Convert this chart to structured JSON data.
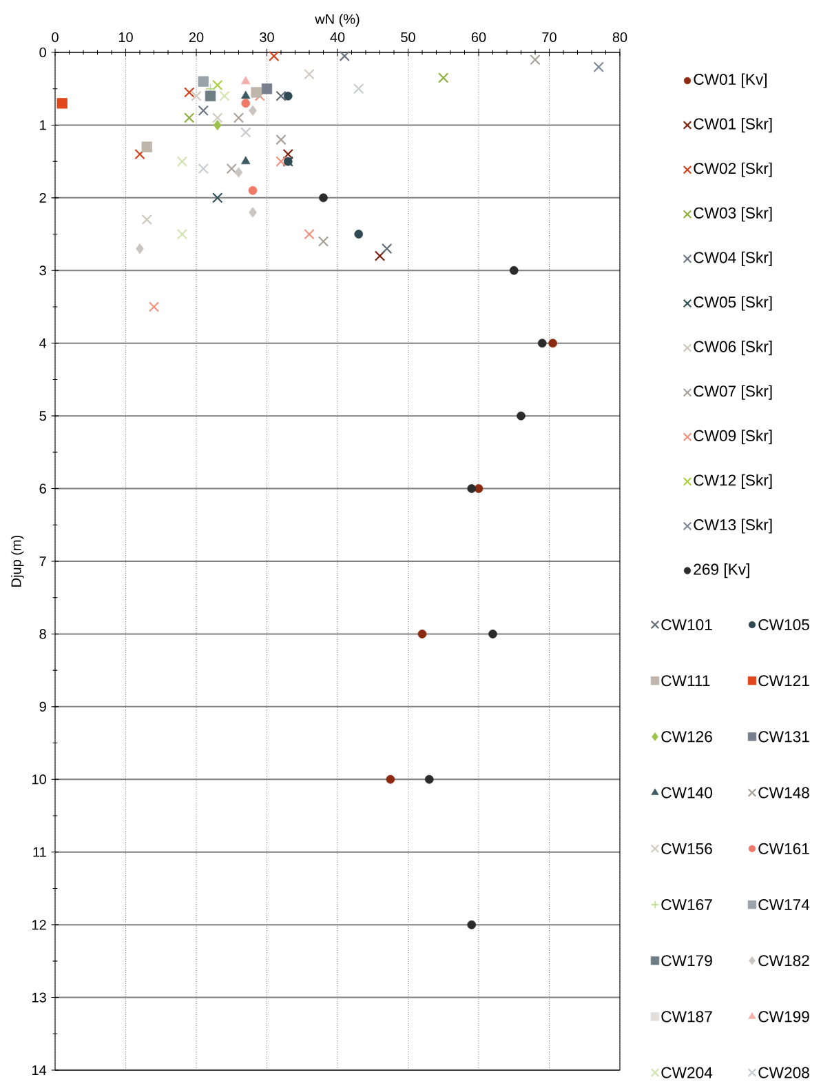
{
  "chart_data": {
    "type": "scatter",
    "xlabel": "wN (%)",
    "ylabel": "Djup (m)",
    "xlim": [
      0,
      80
    ],
    "xticks": [
      0,
      10,
      20,
      30,
      40,
      50,
      60,
      70,
      80
    ],
    "ylim": [
      14,
      0
    ],
    "yticks": [
      0,
      1,
      2,
      3,
      4,
      5,
      6,
      7,
      8,
      9,
      10,
      11,
      12,
      13,
      14
    ],
    "grid": true,
    "legend": "right",
    "series": [
      {
        "name": "CW01 [Kv]",
        "color": "#8b2a10",
        "marker": "circle",
        "x": [
          70.5,
          60,
          52,
          47.5
        ],
        "values": [
          4.0,
          6.0,
          8.0,
          10.0
        ]
      },
      {
        "name": "CW01 [Skr]",
        "color": "#7a1e0a",
        "marker": "cross",
        "x": [
          33,
          46
        ],
        "values": [
          1.4,
          2.8
        ]
      },
      {
        "name": "CW02 [Skr]",
        "color": "#d2401a",
        "marker": "cross",
        "x": [
          31,
          19,
          12
        ],
        "values": [
          0.05,
          0.55,
          1.4
        ]
      },
      {
        "name": "CW03 [Skr]",
        "color": "#8db03a",
        "marker": "cross",
        "x": [
          55,
          19
        ],
        "values": [
          0.35,
          0.9
        ]
      },
      {
        "name": "CW04 [Skr]",
        "color": "#6a7380",
        "marker": "cross",
        "x": [
          41,
          21
        ],
        "values": [
          0.05,
          0.8
        ]
      },
      {
        "name": "CW05 [Skr]",
        "color": "#2f4f57",
        "marker": "cross",
        "x": [
          23,
          33
        ],
        "values": [
          2.0,
          1.5
        ]
      },
      {
        "name": "CW06 [Skr]",
        "color": "#cfc6ba",
        "marker": "cross",
        "x": [
          13
        ],
        "values": [
          2.3
        ]
      },
      {
        "name": "CW07 [Skr]",
        "color": "#a89f97",
        "marker": "cross",
        "x": [
          68,
          32,
          38
        ],
        "values": [
          0.1,
          1.2,
          2.6
        ]
      },
      {
        "name": "CW09 [Skr]",
        "color": "#f4907a",
        "marker": "cross",
        "x": [
          29,
          32,
          36,
          14
        ],
        "values": [
          0.6,
          1.5,
          2.5,
          3.5
        ]
      },
      {
        "name": "CW12 [Skr]",
        "color": "#a8d03c",
        "marker": "cross",
        "x": [
          23
        ],
        "values": [
          0.45
        ]
      },
      {
        "name": "CW13 [Skr]",
        "color": "#7d8896",
        "marker": "cross",
        "x": [
          77
        ],
        "values": [
          0.2
        ]
      },
      {
        "name": "269 [Kv]",
        "color": "#2b2b2b",
        "marker": "circle",
        "x": [
          38,
          65,
          69,
          66,
          59,
          62,
          53,
          59
        ],
        "values": [
          2.0,
          3.0,
          4.0,
          5.0,
          6.0,
          8.0,
          10.0,
          12.0
        ]
      },
      {
        "name": "CW101",
        "color": "#5f6a76",
        "marker": "cross",
        "x": [
          32,
          47
        ],
        "values": [
          0.6,
          2.7
        ]
      },
      {
        "name": "CW105",
        "color": "#2f4a52",
        "marker": "circle",
        "x": [
          33,
          33,
          43
        ],
        "values": [
          0.6,
          1.5,
          2.5
        ]
      },
      {
        "name": "CW111",
        "color": "#bfb5aa",
        "marker": "square",
        "x": [
          13,
          28.5
        ],
        "values": [
          1.3,
          0.55
        ]
      },
      {
        "name": "CW121",
        "color": "#e0481c",
        "marker": "square",
        "x": [
          1
        ],
        "values": [
          0.7
        ]
      },
      {
        "name": "CW126",
        "color": "#9cc24a",
        "marker": "diamond",
        "x": [
          23
        ],
        "values": [
          1.0
        ]
      },
      {
        "name": "CW131",
        "color": "#77808c",
        "marker": "square",
        "x": [
          30
        ],
        "values": [
          0.5
        ]
      },
      {
        "name": "CW140",
        "color": "#3e5a63",
        "marker": "triangle",
        "x": [
          27,
          27
        ],
        "values": [
          0.6,
          1.5
        ]
      },
      {
        "name": "CW148",
        "color": "#aba098",
        "marker": "cross",
        "x": [
          26,
          25
        ],
        "values": [
          0.9,
          1.6
        ]
      },
      {
        "name": "CW156",
        "color": "#d2c8be",
        "marker": "cross",
        "x": [
          20,
          23,
          36
        ],
        "values": [
          0.6,
          0.9,
          0.3
        ]
      },
      {
        "name": "CW161",
        "color": "#f07a6a",
        "marker": "circle",
        "x": [
          27,
          28
        ],
        "values": [
          0.7,
          1.9
        ]
      },
      {
        "name": "CW167",
        "color": "#b2d87a",
        "marker": "plus",
        "x": [
          22
        ],
        "values": [
          0.5
        ]
      },
      {
        "name": "CW174",
        "color": "#9aa2aa",
        "marker": "square",
        "x": [
          21
        ],
        "values": [
          0.4
        ]
      },
      {
        "name": "CW179",
        "color": "#6e7d84",
        "marker": "square",
        "x": [
          22
        ],
        "values": [
          0.6
        ]
      },
      {
        "name": "CW182",
        "color": "#cac5c0",
        "marker": "diamond",
        "x": [
          28,
          26,
          28,
          12
        ],
        "values": [
          0.8,
          1.65,
          2.2,
          2.7
        ]
      },
      {
        "name": "CW187",
        "color": "#e2dfdb",
        "marker": "square"
      },
      {
        "name": "CW199",
        "color": "#f4aea8",
        "marker": "triangle",
        "x": [
          27
        ],
        "values": [
          0.4
        ]
      },
      {
        "name": "CW204",
        "color": "#d3e3b0",
        "marker": "cross",
        "x": [
          24,
          18,
          18
        ],
        "values": [
          0.6,
          1.5,
          2.5
        ]
      },
      {
        "name": "CW208",
        "color": "#c8cad0",
        "marker": "cross",
        "x": [
          43,
          27,
          21
        ],
        "values": [
          0.5,
          1.1,
          1.6
        ]
      }
    ]
  }
}
